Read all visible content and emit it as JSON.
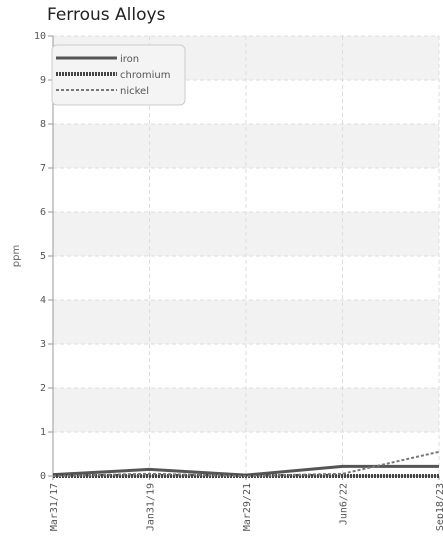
{
  "chart_data": {
    "type": "line",
    "title": "Ferrous Alloys",
    "ylabel": "ppm",
    "xlabel": "",
    "ylim": [
      0,
      10
    ],
    "yticks": [
      "0",
      "1",
      "2",
      "3",
      "4",
      "5",
      "6",
      "7",
      "8",
      "9",
      "10"
    ],
    "x": [
      "Mar31/17",
      "Jan31/19",
      "Mar29/21",
      "Jun6/22",
      "Sep18/23"
    ],
    "grid": true,
    "legend_position": "top-left",
    "series": [
      {
        "name": "iron",
        "values": [
          0.03,
          0.15,
          0.02,
          0.22,
          0.22
        ],
        "color": "#555555",
        "style": "solid"
      },
      {
        "name": "chromium",
        "values": [
          0.0,
          0.0,
          0.0,
          0.0,
          0.0
        ],
        "color": "#444444",
        "style": "dotted"
      },
      {
        "name": "nickel",
        "values": [
          0.0,
          0.05,
          0.0,
          0.05,
          0.55
        ],
        "color": "#777777",
        "style": "dashed"
      }
    ]
  }
}
